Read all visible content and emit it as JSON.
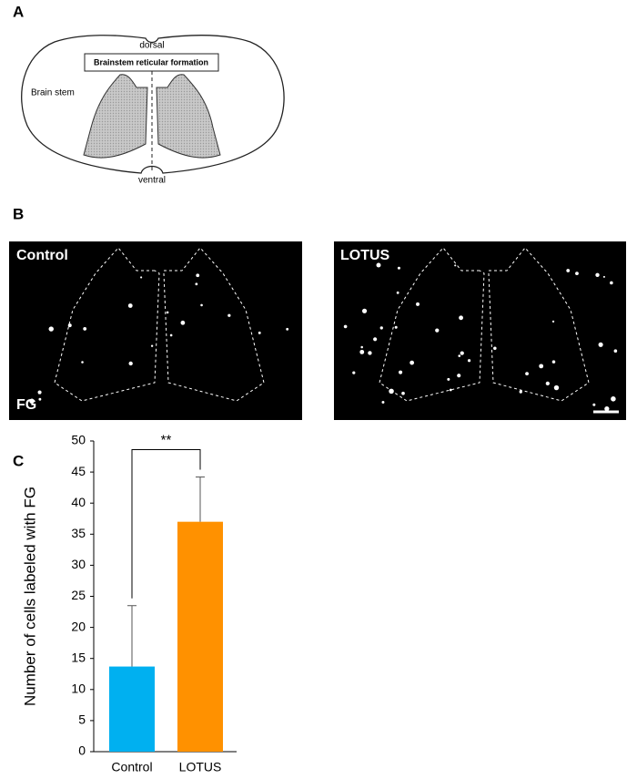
{
  "panels": {
    "a": "A",
    "b": "B",
    "c": "C"
  },
  "diagram": {
    "dorsal": "dorsal",
    "region": "Brainstem reticular formation",
    "brain_stem": "Brain stem",
    "ventral": "ventral"
  },
  "micrographs": [
    {
      "label": "Control",
      "stain": "FG"
    },
    {
      "label": "LOTUS"
    }
  ],
  "chart_data": {
    "type": "bar",
    "ylabel": "Number of cells labeled with FG",
    "categories": [
      "Control",
      "LOTUS"
    ],
    "values": [
      13.7,
      37
    ],
    "errors": [
      9.8,
      7.2
    ],
    "colors": [
      "#00b0f0",
      "#ff9100"
    ],
    "significance": "**",
    "ylim": [
      0,
      50
    ],
    "yticks": [
      0,
      5,
      10,
      15,
      20,
      25,
      30,
      35,
      40,
      45,
      50
    ]
  }
}
